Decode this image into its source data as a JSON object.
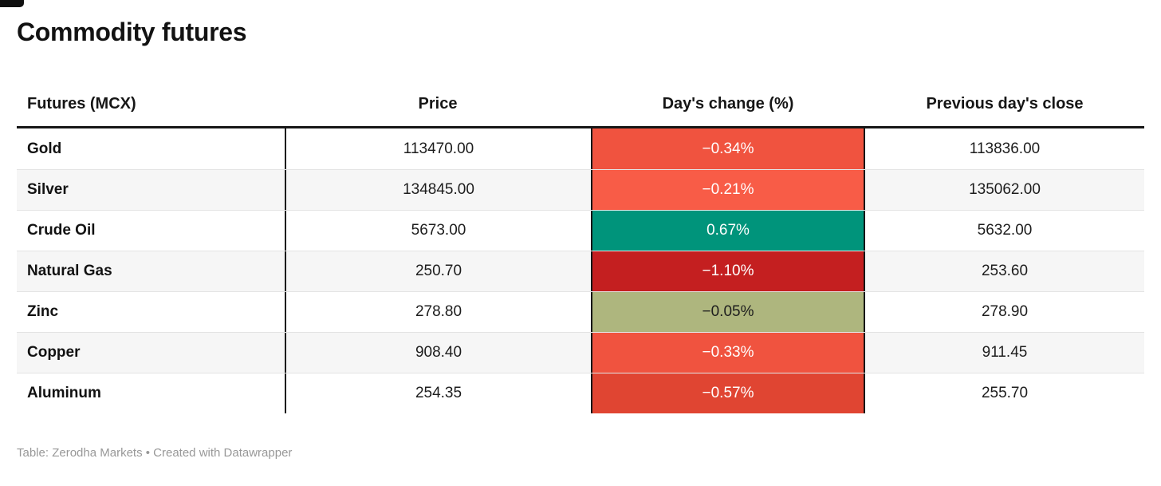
{
  "title": "Commodity futures",
  "footer": {
    "credit": "Table: Zerodha Markets • Created with Datawrapper"
  },
  "accent_colors": {
    "strong_negative": "#c41f20",
    "negative": "#f0533f",
    "light_negative": "#f85c47",
    "near_zero": "#aeb67e",
    "positive": "#00947b"
  },
  "chart_data": {
    "type": "table",
    "title": "Commodity futures",
    "source": "Table: Zerodha Markets • Created with Datawrapper",
    "columns": [
      "Futures (MCX)",
      "Price",
      "Day's change (%)",
      "Previous day's close"
    ],
    "change_values_pct": [
      -0.34,
      -0.21,
      0.67,
      -1.1,
      -0.05,
      -0.33,
      -0.57
    ],
    "rows": [
      {
        "name": "Gold",
        "price": "113470.00",
        "change": "−0.34%",
        "change_pct": -0.34,
        "change_bg": "#f0533f",
        "change_fg": "#ffffff",
        "prev_close": "113836.00"
      },
      {
        "name": "Silver",
        "price": "134845.00",
        "change": "−0.21%",
        "change_pct": -0.21,
        "change_bg": "#f85c47",
        "change_fg": "#ffffff",
        "prev_close": "135062.00"
      },
      {
        "name": "Crude Oil",
        "price": "5673.00",
        "change": "0.67%",
        "change_pct": 0.67,
        "change_bg": "#00947b",
        "change_fg": "#ffffff",
        "prev_close": "5632.00"
      },
      {
        "name": "Natural Gas",
        "price": "250.70",
        "change": "−1.10%",
        "change_pct": -1.1,
        "change_bg": "#c41f20",
        "change_fg": "#ffffff",
        "prev_close": "253.60"
      },
      {
        "name": "Zinc",
        "price": "278.80",
        "change": "−0.05%",
        "change_pct": -0.05,
        "change_bg": "#aeb67e",
        "change_fg": "#1d1d1d",
        "prev_close": "278.90"
      },
      {
        "name": "Copper",
        "price": "908.40",
        "change": "−0.33%",
        "change_pct": -0.33,
        "change_bg": "#f0533f",
        "change_fg": "#ffffff",
        "prev_close": "911.45"
      },
      {
        "name": "Aluminum",
        "price": "254.35",
        "change": "−0.57%",
        "change_pct": -0.57,
        "change_bg": "#e04532",
        "change_fg": "#ffffff",
        "prev_close": "255.70"
      }
    ]
  }
}
